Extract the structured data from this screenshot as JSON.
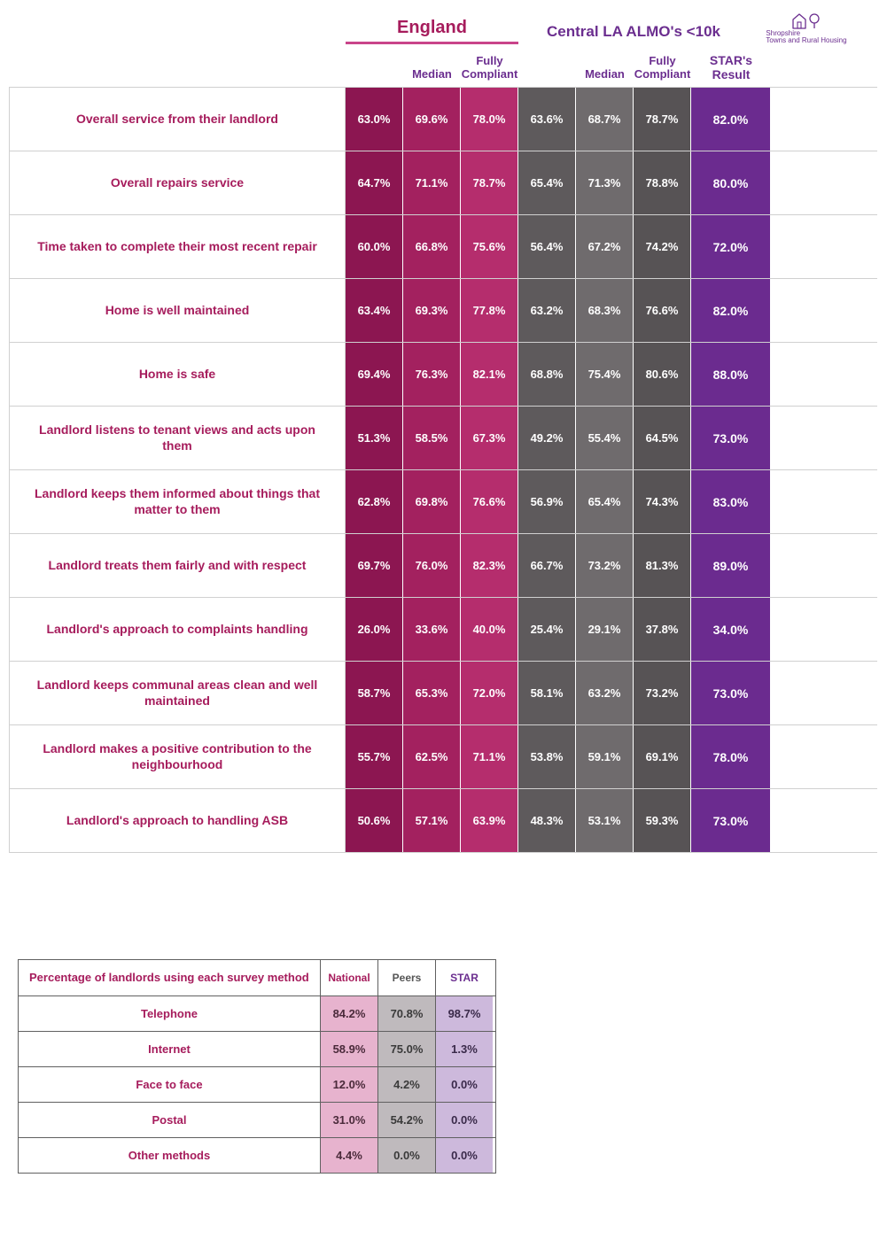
{
  "colors": {
    "brand_pink": "#a61c5c",
    "brand_purple": "#6b2e8f",
    "brand_underline": "#c9448a",
    "eng_lo": "#8c1651",
    "eng_med": "#a3215f",
    "eng_hi": "#b52d6d",
    "almo_lo": "#5e5a5c",
    "almo_med": "#6f6b6d",
    "almo_hi": "#575355",
    "star_cell": "#6b2b8f",
    "method_nat": "#e7b3ce",
    "method_peer": "#bfbabd",
    "method_star": "#cdb9dc",
    "logo_text": "#6b2e8f"
  },
  "headers": {
    "england": "England",
    "almo": "Central LA ALMO's <10k",
    "logo_caption": "Shropshire\nTowns and Rural Housing",
    "median": "Median",
    "fully_compliant": "Fully\nCompliant",
    "star_result": "STAR's\nResult"
  },
  "main": {
    "rows": [
      {
        "label": "Overall service from their landlord",
        "eng_lo": "63.0%",
        "eng_med": "69.6%",
        "eng_hi": "78.0%",
        "almo_lo": "63.6%",
        "almo_med": "68.7%",
        "almo_hi": "78.7%",
        "star": "82.0%",
        "bold_cols": [
          "eng_lo",
          "almo_hi"
        ]
      },
      {
        "label": "Overall repairs service",
        "eng_lo": "64.7%",
        "eng_med": "71.1%",
        "eng_hi": "78.7%",
        "almo_lo": "65.4%",
        "almo_med": "71.3%",
        "almo_hi": "78.8%",
        "star": "80.0%",
        "bold_cols": [
          "almo_lo",
          "almo_hi"
        ]
      },
      {
        "label": "Time taken to complete their most recent repair",
        "eng_lo": "60.0%",
        "eng_med": "66.8%",
        "eng_hi": "75.6%",
        "almo_lo": "56.4%",
        "almo_med": "67.2%",
        "almo_hi": "74.2%",
        "star": "72.0%",
        "bold_cols": [
          "almo_hi"
        ]
      },
      {
        "label": "Home is well maintained",
        "eng_lo": "63.4%",
        "eng_med": "69.3%",
        "eng_hi": "77.8%",
        "almo_lo": "63.2%",
        "almo_med": "68.3%",
        "almo_hi": "76.6%",
        "star": "82.0%",
        "bold_cols": [
          "almo_med",
          "almo_hi"
        ]
      },
      {
        "label": "Home is safe",
        "eng_lo": "69.4%",
        "eng_med": "76.3%",
        "eng_hi": "82.1%",
        "almo_lo": "68.8%",
        "almo_med": "75.4%",
        "almo_hi": "80.6%",
        "star": "88.0%",
        "bold_cols": [
          "almo_hi"
        ]
      },
      {
        "label": "Landlord listens to tenant views and acts upon them",
        "eng_lo": "51.3%",
        "eng_med": "58.5%",
        "eng_hi": "67.3%",
        "almo_lo": "49.2%",
        "almo_med": "55.4%",
        "almo_hi": "64.5%",
        "star": "73.0%",
        "bold_cols": [
          "almo_hi"
        ]
      },
      {
        "label": "Landlord keeps them informed about things that matter to them",
        "eng_lo": "62.8%",
        "eng_med": "69.8%",
        "eng_hi": "76.6%",
        "almo_lo": "56.9%",
        "almo_med": "65.4%",
        "almo_hi": "74.3%",
        "star": "83.0%",
        "bold_cols": [
          "almo_hi"
        ]
      },
      {
        "label": "Landlord treats them fairly and with respect",
        "eng_lo": "69.7%",
        "eng_med": "76.0%",
        "eng_hi": "82.3%",
        "almo_lo": "66.7%",
        "almo_med": "73.2%",
        "almo_hi": "81.3%",
        "star": "89.0%",
        "bold_cols": [
          "almo_hi"
        ]
      },
      {
        "label": "Landlord's approach to complaints handling",
        "eng_lo": "26.0%",
        "eng_med": "33.6%",
        "eng_hi": "40.0%",
        "almo_lo": "25.4%",
        "almo_med": "29.1%",
        "almo_hi": "37.8%",
        "star": "34.0%",
        "bold_cols": [
          "almo_hi"
        ]
      },
      {
        "label": "Landlord keeps communal areas clean and well maintained",
        "eng_lo": "58.7%",
        "eng_med": "65.3%",
        "eng_hi": "72.0%",
        "almo_lo": "58.1%",
        "almo_med": "63.2%",
        "almo_hi": "73.2%",
        "star": "73.0%",
        "bold_cols": [
          "almo_hi"
        ]
      },
      {
        "label": "Landlord makes a positive contribution to the neighbourhood",
        "eng_lo": "55.7%",
        "eng_med": "62.5%",
        "eng_hi": "71.1%",
        "almo_lo": "53.8%",
        "almo_med": "59.1%",
        "almo_hi": "69.1%",
        "star": "78.0%",
        "bold_cols": [
          "almo_hi"
        ]
      },
      {
        "label": "Landlord's approach to handling ASB",
        "eng_lo": "50.6%",
        "eng_med": "57.1%",
        "eng_hi": "63.9%",
        "almo_lo": "48.3%",
        "almo_med": "53.1%",
        "almo_hi": "59.3%",
        "star": "73.0%",
        "bold_cols": [
          "almo_hi"
        ]
      }
    ]
  },
  "method": {
    "title": "Percentage of landlords using each survey method",
    "columns": {
      "national": "National",
      "peers": "Peers",
      "star": "STAR"
    },
    "rows": [
      {
        "label": "Telephone",
        "national": "84.2%",
        "peers": "70.8%",
        "star": "98.7%"
      },
      {
        "label": "Internet",
        "national": "58.9%",
        "peers": "75.0%",
        "star": "1.3%"
      },
      {
        "label": "Face to face",
        "national": "12.0%",
        "peers": "4.2%",
        "star": "0.0%"
      },
      {
        "label": "Postal",
        "national": "31.0%",
        "peers": "54.2%",
        "star": "0.0%"
      },
      {
        "label": "Other methods",
        "national": "4.4%",
        "peers": "0.0%",
        "star": "0.0%"
      }
    ]
  }
}
